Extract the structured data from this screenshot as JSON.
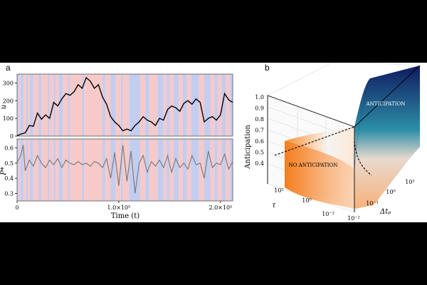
{
  "panels": {
    "a": {
      "label": "a",
      "top_plot": {
        "ylabel": "u",
        "yticks": [
          "0",
          "100",
          "200",
          "300"
        ],
        "ylim": [
          0,
          350
        ],
        "series": [
          {
            "color": "#000000",
            "points": [
              [
                0,
                2
              ],
              [
                4000,
                12
              ],
              [
                8000,
                18
              ],
              [
                12000,
                60
              ],
              [
                16000,
                55
              ],
              [
                20000,
                130
              ],
              [
                24000,
                95
              ],
              [
                28000,
                120
              ],
              [
                32000,
                100
              ],
              [
                36000,
                190
              ],
              [
                40000,
                170
              ],
              [
                44000,
                210
              ],
              [
                48000,
                240
              ],
              [
                52000,
                230
              ],
              [
                56000,
                250
              ],
              [
                60000,
                290
              ],
              [
                64000,
                270
              ],
              [
                68000,
                330
              ],
              [
                72000,
                310
              ],
              [
                76000,
                270
              ],
              [
                80000,
                290
              ],
              [
                84000,
                220
              ],
              [
                88000,
                180
              ],
              [
                92000,
                110
              ],
              [
                96000,
                80
              ],
              [
                100000,
                60
              ],
              [
                104000,
                30
              ],
              [
                108000,
                40
              ],
              [
                112000,
                30
              ],
              [
                116000,
                60
              ],
              [
                120000,
                80
              ],
              [
                124000,
                110
              ],
              [
                128000,
                90
              ],
              [
                132000,
                80
              ],
              [
                136000,
                60
              ],
              [
                140000,
                100
              ],
              [
                144000,
                90
              ],
              [
                148000,
                150
              ],
              [
                152000,
                170
              ],
              [
                156000,
                160
              ],
              [
                160000,
                140
              ],
              [
                164000,
                185
              ],
              [
                168000,
                200
              ],
              [
                172000,
                180
              ],
              [
                176000,
                210
              ],
              [
                180000,
                190
              ],
              [
                184000,
                80
              ],
              [
                188000,
                100
              ],
              [
                192000,
                110
              ],
              [
                196000,
                90
              ],
              [
                200000,
                120
              ],
              [
                204000,
                240
              ],
              [
                208000,
                205
              ],
              [
                212000,
                190
              ]
            ]
          }
        ]
      },
      "bottom_plot": {
        "ylabel": "P*",
        "yticks": [
          "0.3",
          "0.4",
          "0.5",
          "0.6"
        ],
        "ylim": [
          0.25,
          0.66
        ],
        "series": [
          {
            "color": "#777777",
            "points": [
              [
                0,
                0.5
              ],
              [
                4000,
                0.56
              ],
              [
                6000,
                0.62
              ],
              [
                8000,
                0.45
              ],
              [
                12000,
                0.52
              ],
              [
                16000,
                0.48
              ],
              [
                20000,
                0.55
              ],
              [
                24000,
                0.5
              ],
              [
                28000,
                0.47
              ],
              [
                32000,
                0.52
              ],
              [
                36000,
                0.49
              ],
              [
                40000,
                0.53
              ],
              [
                44000,
                0.47
              ],
              [
                48000,
                0.52
              ],
              [
                52000,
                0.5
              ],
              [
                56000,
                0.49
              ],
              [
                60000,
                0.51
              ],
              [
                64000,
                0.49
              ],
              [
                68000,
                0.5
              ],
              [
                72000,
                0.48
              ],
              [
                76000,
                0.51
              ],
              [
                80000,
                0.5
              ],
              [
                84000,
                0.47
              ],
              [
                88000,
                0.53
              ],
              [
                92000,
                0.4
              ],
              [
                96000,
                0.57
              ],
              [
                100000,
                0.35
              ],
              [
                104000,
                0.62
              ],
              [
                108000,
                0.38
              ],
              [
                112000,
                0.58
              ],
              [
                116000,
                0.3
              ],
              [
                120000,
                0.5
              ],
              [
                124000,
                0.55
              ],
              [
                128000,
                0.44
              ],
              [
                132000,
                0.51
              ],
              [
                136000,
                0.48
              ],
              [
                140000,
                0.52
              ],
              [
                144000,
                0.47
              ],
              [
                148000,
                0.55
              ],
              [
                152000,
                0.44
              ],
              [
                156000,
                0.53
              ],
              [
                160000,
                0.47
              ],
              [
                164000,
                0.5
              ],
              [
                168000,
                0.46
              ],
              [
                172000,
                0.55
              ],
              [
                176000,
                0.49
              ],
              [
                180000,
                0.5
              ],
              [
                184000,
                0.4
              ],
              [
                188000,
                0.58
              ],
              [
                192000,
                0.47
              ],
              [
                196000,
                0.5
              ],
              [
                200000,
                0.49
              ],
              [
                204000,
                0.56
              ],
              [
                208000,
                0.46
              ],
              [
                212000,
                0.51
              ]
            ]
          }
        ]
      },
      "xlabel": "Time (t)",
      "xticks": [
        "0",
        "1.0×10⁵",
        "2.0×10⁵"
      ],
      "xtick_values": [
        0,
        100000,
        200000
      ],
      "xlim": [
        0,
        212000
      ],
      "band_colors": {
        "red": "#f7c9c9",
        "blue": "#c3cdf0"
      },
      "bands": [
        [
          "b",
          0,
          1500
        ],
        [
          "r",
          1500,
          3000
        ],
        [
          "b",
          3000,
          6500
        ],
        [
          "r",
          6500,
          9000
        ],
        [
          "b",
          9000,
          10500
        ],
        [
          "r",
          10500,
          12500
        ],
        [
          "b",
          12500,
          16000
        ],
        [
          "r",
          16000,
          21000
        ],
        [
          "b",
          21000,
          24000
        ],
        [
          "r",
          24000,
          30000
        ],
        [
          "b",
          30000,
          32000
        ],
        [
          "r",
          32000,
          36000
        ],
        [
          "b",
          36000,
          38000
        ],
        [
          "r",
          38000,
          41000
        ],
        [
          "b",
          41000,
          45000
        ],
        [
          "r",
          45000,
          50000
        ],
        [
          "b",
          50000,
          52000
        ],
        [
          "r",
          52000,
          64000
        ],
        [
          "b",
          64000,
          66000
        ],
        [
          "r",
          66000,
          84000
        ],
        [
          "b",
          84000,
          87000
        ],
        [
          "r",
          87000,
          92000
        ],
        [
          "b",
          92000,
          97000
        ],
        [
          "r",
          97000,
          102000
        ],
        [
          "b",
          102000,
          104000
        ],
        [
          "r",
          104000,
          110000
        ],
        [
          "b",
          110000,
          121000
        ],
        [
          "r",
          121000,
          126000
        ],
        [
          "b",
          126000,
          130000
        ],
        [
          "r",
          130000,
          138000
        ],
        [
          "b",
          138000,
          144000
        ],
        [
          "r",
          144000,
          147000
        ],
        [
          "b",
          147000,
          150000
        ],
        [
          "r",
          150000,
          154000
        ],
        [
          "b",
          154000,
          159000
        ],
        [
          "r",
          159000,
          163000
        ],
        [
          "b",
          163000,
          167000
        ],
        [
          "r",
          167000,
          171000
        ],
        [
          "b",
          171000,
          179000
        ],
        [
          "r",
          179000,
          184000
        ],
        [
          "b",
          184000,
          190000
        ],
        [
          "r",
          190000,
          194000
        ],
        [
          "b",
          194000,
          197000
        ],
        [
          "r",
          197000,
          201000
        ],
        [
          "b",
          201000,
          205000
        ],
        [
          "r",
          205000,
          209000
        ],
        [
          "b",
          209000,
          212000
        ]
      ]
    },
    "b": {
      "label": "b",
      "zlabel": "Anticipation",
      "zticks": [
        "0.4",
        "0.5",
        "0.6",
        "0.7",
        "0.8",
        "0.9",
        "1.0"
      ],
      "x_axis_label": "Δtₚ",
      "y_axis_label": "τ",
      "x_ticks": [
        "10⁻²",
        "10⁻¹",
        "10⁰",
        "10¹"
      ],
      "y_ticks": [
        "10²",
        "10⁰",
        "10⁻²"
      ],
      "annotation_high": "ANTICIPATION",
      "annotation_low": "NO ANTICIPATION",
      "colors": {
        "low": "#f07a1a",
        "mid": "#2c8fa8",
        "high": "#101a60"
      }
    }
  }
}
